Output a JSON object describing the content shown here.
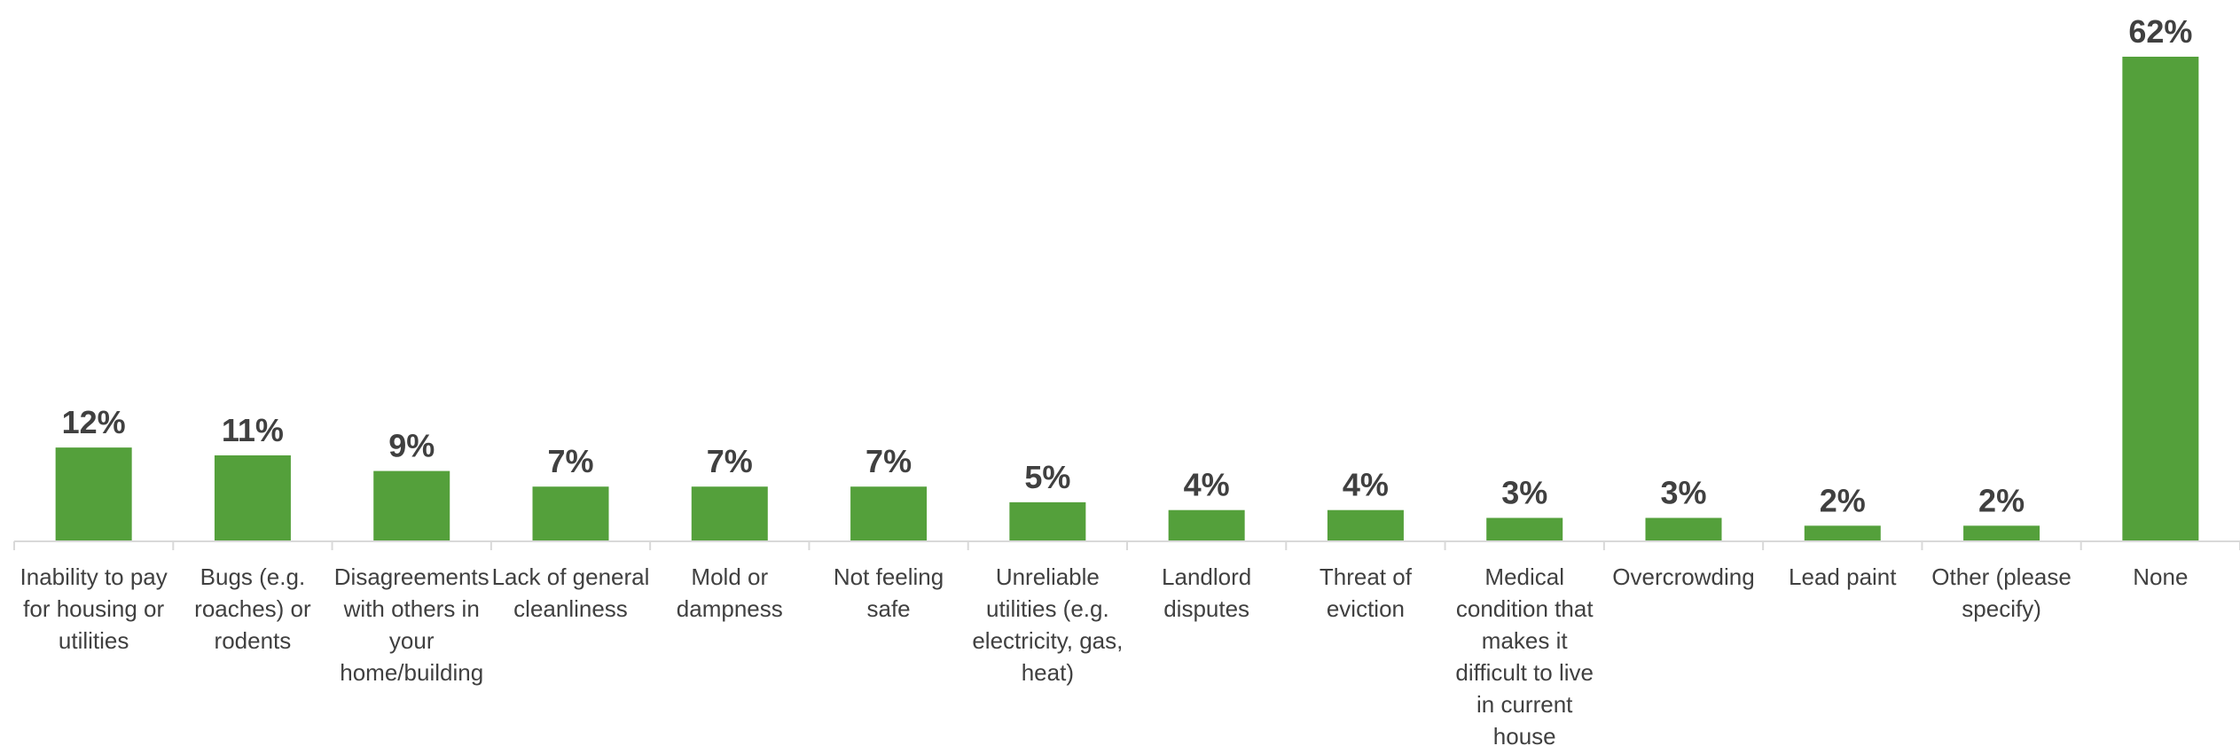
{
  "chart_data": {
    "type": "bar",
    "title": "",
    "xlabel": "",
    "ylabel": "",
    "ylim": [
      0,
      62
    ],
    "grid": false,
    "legend": "none",
    "bar_color": "#54a03b",
    "axis_color": "#d9d9d9",
    "label_color": "#404040",
    "categories": [
      [
        "Inability to pay",
        "for housing or",
        "utilities"
      ],
      [
        "Bugs (e.g.",
        "roaches) or",
        "rodents"
      ],
      [
        "Disagreements",
        "with others in",
        "your",
        "home/building"
      ],
      [
        "Lack of general",
        "cleanliness"
      ],
      [
        "Mold or",
        "dampness"
      ],
      [
        "Not feeling",
        "safe"
      ],
      [
        "Unreliable",
        "utilities (e.g.",
        "electricity, gas,",
        "heat)"
      ],
      [
        "Landlord",
        "disputes"
      ],
      [
        "Threat of",
        "eviction"
      ],
      [
        "Medical",
        "condition that",
        "makes it",
        "difficult to live",
        "in current",
        "house"
      ],
      [
        "Overcrowding"
      ],
      [
        "Lead paint"
      ],
      [
        "Other (please",
        "specify)"
      ],
      [
        "None"
      ]
    ],
    "values": [
      12,
      11,
      9,
      7,
      7,
      7,
      5,
      4,
      4,
      3,
      3,
      2,
      2,
      62
    ],
    "value_labels": [
      "12%",
      "11%",
      "9%",
      "7%",
      "7%",
      "7%",
      "5%",
      "4%",
      "4%",
      "3%",
      "3%",
      "2%",
      "2%",
      "62%"
    ]
  }
}
